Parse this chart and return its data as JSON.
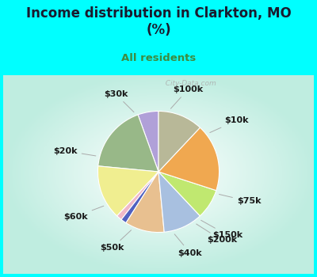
{
  "title": "Income distribution in Clarkton, MO\n(%)",
  "subtitle": "All residents",
  "title_color": "#1a1a2e",
  "subtitle_color": "#3d8c40",
  "background_top": "#00FFFF",
  "labels": [
    "$100k",
    "$10k",
    "$75k",
    "$150k",
    "$200k",
    "$40k",
    "$50k",
    "$60k",
    "$20k",
    "$30k"
  ],
  "values": [
    5.5,
    18.0,
    14.5,
    1.5,
    1.5,
    10.5,
    10.5,
    8.0,
    18.0,
    12.0
  ],
  "colors": [
    "#b0a0d8",
    "#98b888",
    "#f0ee90",
    "#f0b8c8",
    "#5060c0",
    "#e8c090",
    "#a8c0e0",
    "#c0e870",
    "#f0a850",
    "#b8b898"
  ],
  "startangle": 90,
  "label_fontsize": 8,
  "label_color": "#1a1a1a",
  "watermark": "  City-Data.com"
}
